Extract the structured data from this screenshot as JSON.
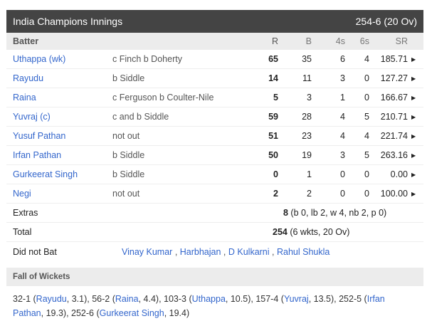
{
  "header": {
    "title": "India Champions Innings",
    "score": "254-6 (20 Ov)"
  },
  "columns": {
    "batter": "Batter",
    "r": "R",
    "b": "B",
    "fours": "4s",
    "sixes": "6s",
    "sr": "SR"
  },
  "batters": [
    {
      "name": "Uthappa (wk)",
      "dismissal": "c Finch b Doherty",
      "r": "65",
      "b": "35",
      "fours": "6",
      "sixes": "4",
      "sr": "185.71"
    },
    {
      "name": "Rayudu",
      "dismissal": "b Siddle",
      "r": "14",
      "b": "11",
      "fours": "3",
      "sixes": "0",
      "sr": "127.27"
    },
    {
      "name": "Raina",
      "dismissal": "c Ferguson b Coulter-Nile",
      "r": "5",
      "b": "3",
      "fours": "1",
      "sixes": "0",
      "sr": "166.67"
    },
    {
      "name": "Yuvraj (c)",
      "dismissal": "c and b Siddle",
      "r": "59",
      "b": "28",
      "fours": "4",
      "sixes": "5",
      "sr": "210.71"
    },
    {
      "name": "Yusuf Pathan",
      "dismissal": "not out",
      "r": "51",
      "b": "23",
      "fours": "4",
      "sixes": "4",
      "sr": "221.74"
    },
    {
      "name": "Irfan Pathan",
      "dismissal": "b Siddle",
      "r": "50",
      "b": "19",
      "fours": "3",
      "sixes": "5",
      "sr": "263.16"
    },
    {
      "name": "Gurkeerat Singh",
      "dismissal": "b Siddle",
      "r": "0",
      "b": "1",
      "fours": "0",
      "sixes": "0",
      "sr": "0.00"
    },
    {
      "name": "Negi",
      "dismissal": "not out",
      "r": "2",
      "b": "2",
      "fours": "0",
      "sixes": "0",
      "sr": "100.00"
    }
  ],
  "extras": {
    "label": "Extras",
    "value": "8",
    "detail": " (b 0, lb 2, w 4, nb 2, p 0)"
  },
  "total": {
    "label": "Total",
    "value": "254",
    "detail": " (6 wkts, 20 Ov)"
  },
  "did_not_bat": {
    "label": "Did not Bat",
    "players": [
      "Vinay Kumar",
      "Harbhajan",
      "D Kulkarni",
      "Rahul Shukla"
    ]
  },
  "fall_of_wickets": {
    "title": "Fall of Wickets",
    "items": [
      {
        "score": "32-1",
        "player": "Rayudu",
        "over": "3.1"
      },
      {
        "score": "56-2",
        "player": "Raina",
        "over": "4.4"
      },
      {
        "score": "103-3",
        "player": "Uthappa",
        "over": "10.5"
      },
      {
        "score": "157-4",
        "player": "Yuvraj",
        "over": "13.5"
      },
      {
        "score": "252-5",
        "player": "Irfan Pathan",
        "over": "19.3"
      },
      {
        "score": "252-6",
        "player": "Gurkeerat Singh",
        "over": "19.4"
      }
    ]
  }
}
